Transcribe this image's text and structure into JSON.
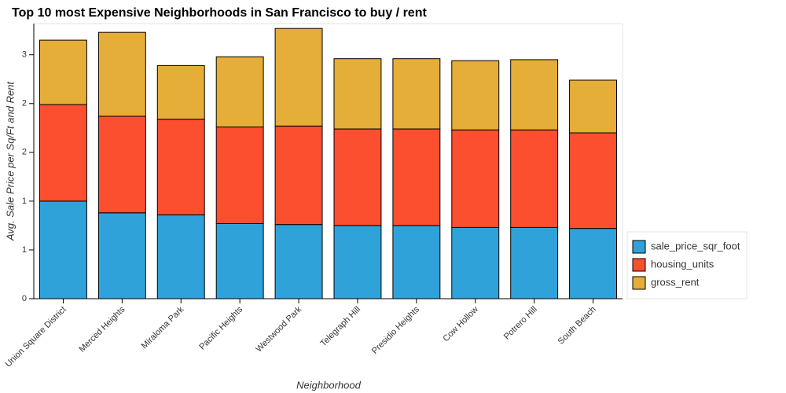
{
  "chart_data": {
    "type": "stacked_bar",
    "title": "Top 10 most Expensive Neighborhoods in San Francisco to buy / rent",
    "xlabel": "Neighborhood",
    "ylabel": "Avg. Sale Price per Sq/Ft and Rent",
    "categories": [
      "Union Square District",
      "Merced Heights",
      "Miraloma Park",
      "Pacific Heights",
      "Westwood Park",
      "Telegraph Hill",
      "Presidio Heights",
      "Cow Hollow",
      "Potrero Hill",
      "South Beach"
    ],
    "series": [
      {
        "name": "sale_price_sqr_foot",
        "color": "#30a2da",
        "values": [
          1.0,
          0.88,
          0.86,
          0.77,
          0.76,
          0.75,
          0.75,
          0.73,
          0.73,
          0.72
        ]
      },
      {
        "name": "housing_units",
        "color": "#fc4f30",
        "values": [
          0.99,
          0.99,
          0.98,
          0.99,
          1.01,
          0.99,
          0.99,
          1.0,
          1.0,
          0.98
        ]
      },
      {
        "name": "gross_rent",
        "color": "#e5ae38",
        "values": [
          0.66,
          0.86,
          0.55,
          0.72,
          1.0,
          0.72,
          0.72,
          0.71,
          0.72,
          0.54
        ]
      }
    ],
    "ylim": [
      0,
      2.82
    ],
    "yticks": [
      {
        "value": 0,
        "label": "0"
      },
      {
        "value": 0.5,
        "label": "1"
      },
      {
        "value": 1,
        "label": "1"
      },
      {
        "value": 1.5,
        "label": "2"
      },
      {
        "value": 2,
        "label": "2"
      },
      {
        "value": 2.5,
        "label": "3"
      }
    ],
    "legend": "lower right"
  }
}
